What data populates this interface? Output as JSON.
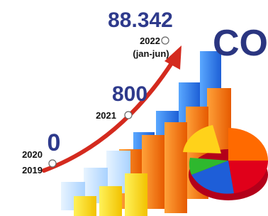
{
  "headline_fragment": "CO",
  "milestones": [
    {
      "value_text": "88.342",
      "years": [
        "2022",
        "(jan-jun)"
      ]
    },
    {
      "value_text": "800",
      "years": [
        "2021"
      ]
    },
    {
      "value_text": "0",
      "years": [
        "2020",
        "2019"
      ]
    }
  ]
}
